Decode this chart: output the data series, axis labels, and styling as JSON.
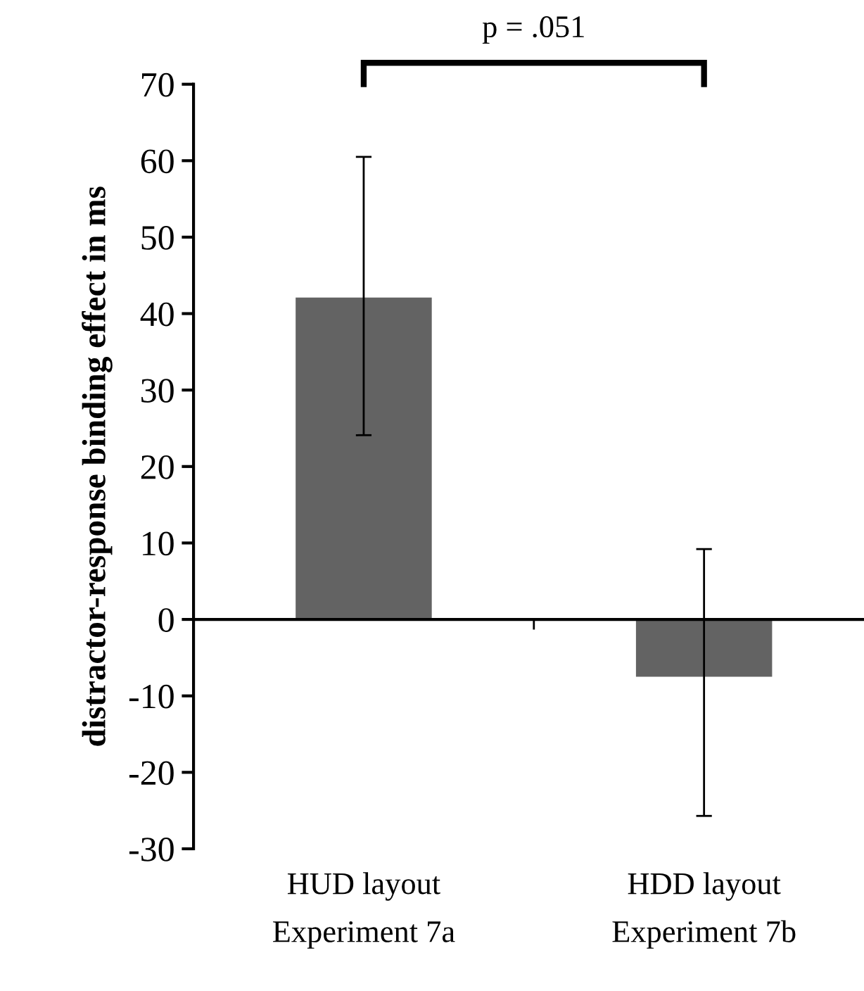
{
  "chart_data": {
    "type": "bar",
    "ylabel": "distractor-response binding effect in ms",
    "categories": [
      "HUD layout\nExperiment 7a",
      "HDD layout\nExperiment 7b"
    ],
    "values": [
      42.1,
      -7.5
    ],
    "color": "#636363",
    "errors": [
      [
        24.1,
        60.5
      ],
      [
        -25.7,
        9.2
      ]
    ],
    "ylim": [
      -30,
      70
    ],
    "yticks": [
      {
        "value": -30,
        "label": "-30"
      },
      {
        "value": -20,
        "label": "-20"
      },
      {
        "value": -10,
        "label": "-10"
      },
      0,
      10,
      20,
      30,
      40,
      50,
      60,
      70
    ],
    "annotations": [
      "p = .051"
    ],
    "legend": false
  }
}
